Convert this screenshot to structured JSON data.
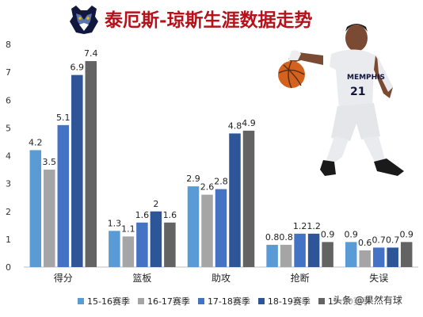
{
  "title": "泰厄斯-琼斯生涯数据走势",
  "watermark": "头条 @果然有球",
  "logo_icon": "grizzlies-bear-logo",
  "photo_icon": "player-dribbling-photo",
  "chart_data": {
    "type": "bar",
    "title": "泰厄斯-琼斯生涯数据走势",
    "categories": [
      "得分",
      "篮板",
      "助攻",
      "抢断",
      "失误"
    ],
    "series": [
      {
        "name": "15-16赛季",
        "color": "#5b9bd5",
        "values": [
          4.2,
          1.3,
          2.9,
          0.8,
          0.9
        ]
      },
      {
        "name": "16-17赛季",
        "color": "#a5a5a5",
        "values": [
          3.5,
          1.1,
          2.6,
          0.8,
          0.6
        ]
      },
      {
        "name": "17-18赛季",
        "color": "#4472c4",
        "values": [
          5.1,
          1.6,
          2.8,
          1.2,
          0.7
        ]
      },
      {
        "name": "18-19赛季",
        "color": "#2e5597",
        "values": [
          6.9,
          2,
          4.8,
          1.2,
          0.7
        ]
      },
      {
        "name": "19-20赛季",
        "color": "#636363",
        "values": [
          7.4,
          1.6,
          4.9,
          0.9,
          0.9
        ]
      }
    ],
    "yticks": [
      "0",
      "1",
      "2",
      "3",
      "4",
      "5",
      "6",
      "7",
      "8"
    ],
    "ylim": [
      0,
      8
    ],
    "grid": false,
    "legend": "bottom",
    "xlabel": "",
    "ylabel": ""
  }
}
